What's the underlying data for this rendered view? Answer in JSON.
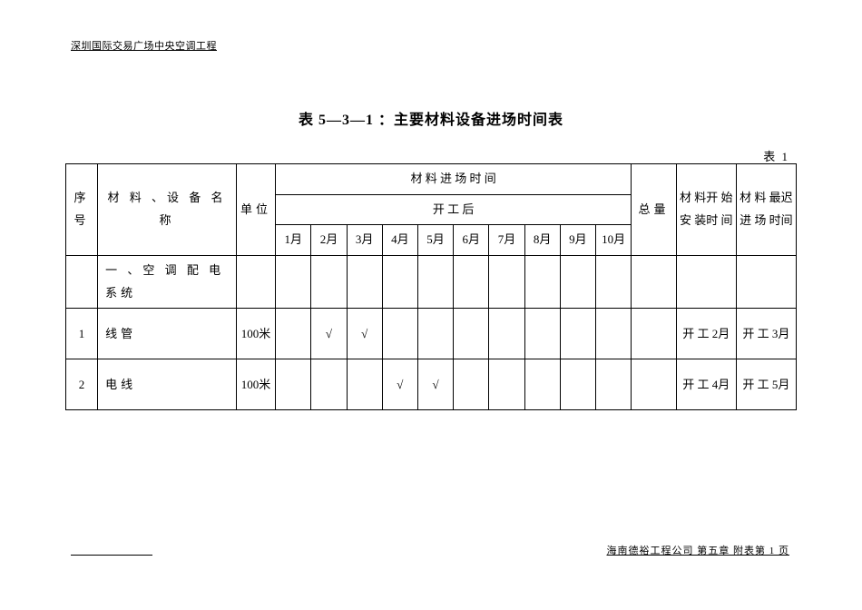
{
  "header": {
    "project": "深圳国际交易广场中央空调工程"
  },
  "title": "表 5—3—1  ：主要材料设备进场时间表",
  "table_label": "表 1",
  "columns": {
    "seq": "序号",
    "name": "材 料 、设 备 名 称",
    "unit": "单位",
    "arrival_time": "材 料 进 场 时 间",
    "after_start": "开 工 后",
    "months": [
      "1月",
      "2月",
      "3月",
      "4月",
      "5月",
      "6月",
      "7月",
      "8月",
      "9月",
      "10月"
    ],
    "total": "总量",
    "start_install": "材 料开 始安 装时 间",
    "latest_arrival": "材 料 最迟进 场 时间"
  },
  "rows": [
    {
      "seq": "",
      "name": "一 、空 调 配 电 系统",
      "unit": "",
      "months": [
        "",
        "",
        "",
        "",
        "",
        "",
        "",
        "",
        "",
        ""
      ],
      "total": "",
      "start": "",
      "latest": ""
    },
    {
      "seq": "1",
      "name": "线管",
      "unit": "100米",
      "months": [
        "",
        "√",
        "√",
        "",
        "",
        "",
        "",
        "",
        "",
        ""
      ],
      "total": "",
      "start": "开 工 2月",
      "latest": "开 工 3月"
    },
    {
      "seq": "2",
      "name": "电线",
      "unit": "100米",
      "months": [
        "",
        "",
        "",
        "√",
        "√",
        "",
        "",
        "",
        "",
        ""
      ],
      "total": "",
      "start": "开 工 4月",
      "latest": "开 工 5月"
    }
  ],
  "footer": {
    "right": "海南德裕工程公司   第五章   附表第 1 页"
  },
  "style": {
    "page_bg": "#ffffff",
    "text_color": "#000000",
    "border_color": "#000000",
    "title_fontsize": 16,
    "body_fontsize": 13,
    "small_fontsize": 11
  }
}
